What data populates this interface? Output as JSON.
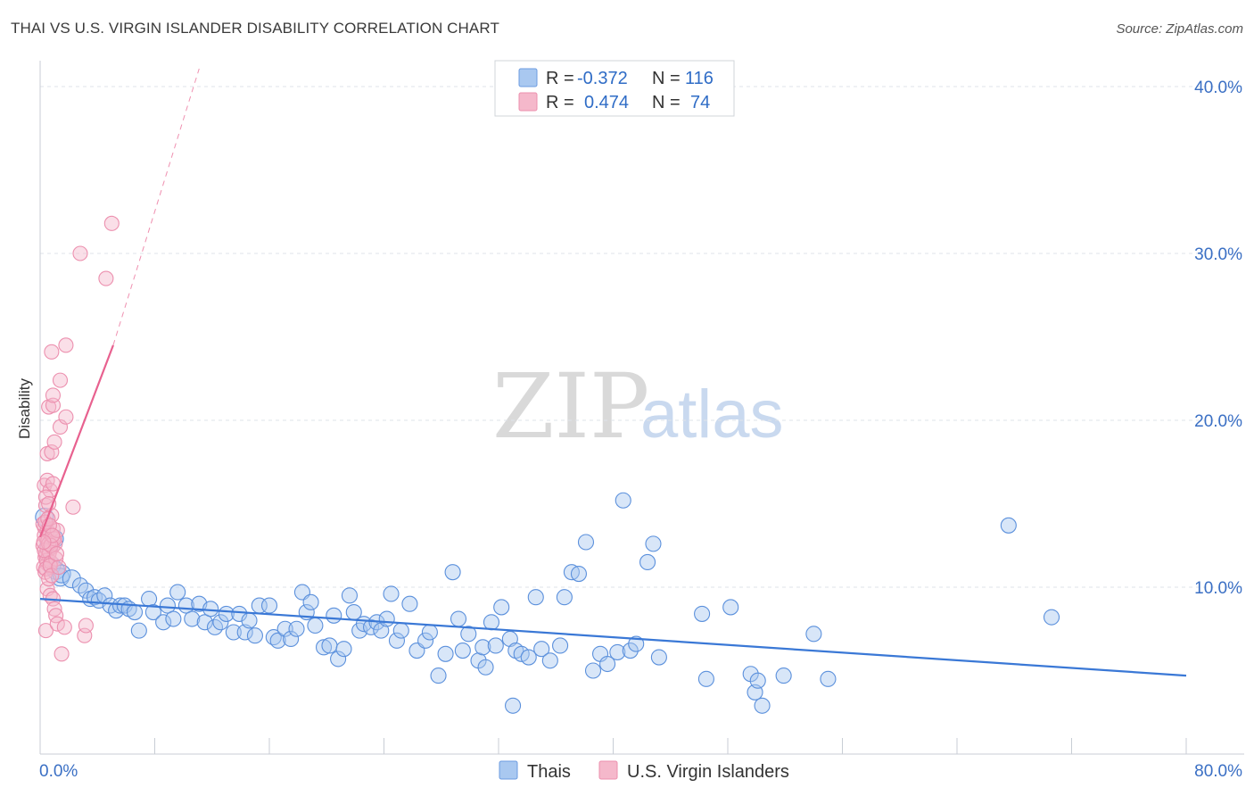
{
  "title": "THAI VS U.S. VIRGIN ISLANDER DISABILITY CORRELATION CHART",
  "source": "Source: ZipAtlas.com",
  "watermark": {
    "zip": "ZIP",
    "atlas": "atlas"
  },
  "colors": {
    "blue": "#3a78d6",
    "blue_fill": "#a9c8f0",
    "pink": "#e8618f",
    "pink_fill": "#f5b8cb",
    "grid": "#dfe3ea",
    "axis": "#3a6fc4"
  },
  "legend": {
    "rows": [
      {
        "r_label": "R =",
        "r_value": "-0.372",
        "n_label": "N =",
        "n_value": "116"
      },
      {
        "r_label": "R =",
        "r_value": "0.474",
        "n_label": "N =",
        "n_value": "74"
      }
    ]
  },
  "bottom_legend": [
    "Thais",
    "U.S. Virgin Islanders"
  ],
  "chart_data": {
    "type": "scatter",
    "title": "THAI VS U.S. VIRGIN ISLANDER DISABILITY CORRELATION CHART",
    "xlabel": "",
    "ylabel": "Disability",
    "xlim": [
      0,
      80
    ],
    "ylim": [
      0,
      40
    ],
    "x_tick_labels": [
      "0.0%",
      "80.0%"
    ],
    "y_ticks": [
      10,
      20,
      30,
      40
    ],
    "y_tick_labels": [
      "10.0%",
      "20.0%",
      "30.0%",
      "40.0%"
    ],
    "series": [
      {
        "name": "Thais",
        "R": -0.372,
        "N": 116,
        "trend": {
          "x": [
            0,
            80
          ],
          "y": [
            9.3,
            4.7
          ]
        },
        "points": [
          [
            0.3,
            14.2
          ],
          [
            0.6,
            12.4
          ],
          [
            0.8,
            11.3
          ],
          [
            1.0,
            12.9
          ],
          [
            1.1,
            11.0
          ],
          [
            1.4,
            10.6
          ],
          [
            1.5,
            10.8
          ],
          [
            2.2,
            10.5
          ],
          [
            2.8,
            10.1
          ],
          [
            3.2,
            9.8
          ],
          [
            3.5,
            9.3
          ],
          [
            3.8,
            9.4
          ],
          [
            4.1,
            9.2
          ],
          [
            4.5,
            9.5
          ],
          [
            4.9,
            8.9
          ],
          [
            5.3,
            8.6
          ],
          [
            5.6,
            8.9
          ],
          [
            5.9,
            8.9
          ],
          [
            6.2,
            8.7
          ],
          [
            6.6,
            8.5
          ],
          [
            6.9,
            7.4
          ],
          [
            7.6,
            9.3
          ],
          [
            7.9,
            8.5
          ],
          [
            8.6,
            7.9
          ],
          [
            8.9,
            8.9
          ],
          [
            9.3,
            8.1
          ],
          [
            9.6,
            9.7
          ],
          [
            10.2,
            8.9
          ],
          [
            10.6,
            8.1
          ],
          [
            11.1,
            9.0
          ],
          [
            11.5,
            7.9
          ],
          [
            11.9,
            8.7
          ],
          [
            12.2,
            7.6
          ],
          [
            12.6,
            7.9
          ],
          [
            13.0,
            8.4
          ],
          [
            13.5,
            7.3
          ],
          [
            13.9,
            8.4
          ],
          [
            14.3,
            7.3
          ],
          [
            14.6,
            8.0
          ],
          [
            15.0,
            7.1
          ],
          [
            15.3,
            8.9
          ],
          [
            16.0,
            8.9
          ],
          [
            16.3,
            7.0
          ],
          [
            16.6,
            6.8
          ],
          [
            17.1,
            7.5
          ],
          [
            17.5,
            6.9
          ],
          [
            17.9,
            7.5
          ],
          [
            18.3,
            9.7
          ],
          [
            18.6,
            8.5
          ],
          [
            18.9,
            9.1
          ],
          [
            19.2,
            7.7
          ],
          [
            19.8,
            6.4
          ],
          [
            20.2,
            6.5
          ],
          [
            20.5,
            8.3
          ],
          [
            20.8,
            5.7
          ],
          [
            21.2,
            6.3
          ],
          [
            21.6,
            9.5
          ],
          [
            21.9,
            8.5
          ],
          [
            22.3,
            7.4
          ],
          [
            22.6,
            7.8
          ],
          [
            23.1,
            7.6
          ],
          [
            23.5,
            7.9
          ],
          [
            23.8,
            7.4
          ],
          [
            24.2,
            8.1
          ],
          [
            24.5,
            9.6
          ],
          [
            24.9,
            6.8
          ],
          [
            25.2,
            7.4
          ],
          [
            25.8,
            9.0
          ],
          [
            26.3,
            6.2
          ],
          [
            26.9,
            6.8
          ],
          [
            27.2,
            7.3
          ],
          [
            27.8,
            4.7
          ],
          [
            28.3,
            6.0
          ],
          [
            28.8,
            10.9
          ],
          [
            29.2,
            8.1
          ],
          [
            29.5,
            6.2
          ],
          [
            29.9,
            7.2
          ],
          [
            30.6,
            5.6
          ],
          [
            30.9,
            6.4
          ],
          [
            31.1,
            5.2
          ],
          [
            31.5,
            7.9
          ],
          [
            31.8,
            6.5
          ],
          [
            32.2,
            8.8
          ],
          [
            32.8,
            6.9
          ],
          [
            33.2,
            6.2
          ],
          [
            33.6,
            6.0
          ],
          [
            34.1,
            5.8
          ],
          [
            34.6,
            9.4
          ],
          [
            35.0,
            6.3
          ],
          [
            35.6,
            5.6
          ],
          [
            36.3,
            6.5
          ],
          [
            36.6,
            9.4
          ],
          [
            37.1,
            10.9
          ],
          [
            37.6,
            10.8
          ],
          [
            38.1,
            12.7
          ],
          [
            38.6,
            5.0
          ],
          [
            39.1,
            6.0
          ],
          [
            39.6,
            5.4
          ],
          [
            40.3,
            6.1
          ],
          [
            40.7,
            15.2
          ],
          [
            41.2,
            6.2
          ],
          [
            41.6,
            6.6
          ],
          [
            42.4,
            11.5
          ],
          [
            42.8,
            12.6
          ],
          [
            43.2,
            5.8
          ],
          [
            46.2,
            8.4
          ],
          [
            46.5,
            4.5
          ],
          [
            48.2,
            8.8
          ],
          [
            49.6,
            4.8
          ],
          [
            49.9,
            3.7
          ],
          [
            50.1,
            4.4
          ],
          [
            50.4,
            2.9
          ],
          [
            51.9,
            4.7
          ],
          [
            54.0,
            7.2
          ],
          [
            55.0,
            4.5
          ],
          [
            67.6,
            13.7
          ],
          [
            70.6,
            8.2
          ],
          [
            33.0,
            2.9
          ]
        ]
      },
      {
        "name": "U.S. Virgin Islanders",
        "R": 0.474,
        "N": 74,
        "trend": {
          "x": [
            0,
            5.1
          ],
          "y": [
            13.0,
            24.5
          ]
        },
        "trend_extended": {
          "x": [
            5.1,
            11.1
          ],
          "y": [
            24.5,
            40.0
          ]
        },
        "points": [
          [
            0.2,
            12.5
          ],
          [
            0.3,
            13.1
          ],
          [
            0.35,
            11.8
          ],
          [
            0.4,
            12.0
          ],
          [
            0.45,
            12.9
          ],
          [
            0.5,
            11.4
          ],
          [
            0.3,
            13.6
          ],
          [
            0.4,
            14.9
          ],
          [
            0.5,
            12.3
          ],
          [
            0.6,
            11.9
          ],
          [
            0.7,
            13.2
          ],
          [
            0.8,
            12.7
          ],
          [
            0.25,
            11.2
          ],
          [
            0.35,
            10.9
          ],
          [
            0.45,
            11.6
          ],
          [
            0.55,
            12.8
          ],
          [
            0.65,
            12.1
          ],
          [
            0.75,
            11.5
          ],
          [
            0.85,
            12.4
          ],
          [
            0.95,
            13.0
          ],
          [
            1.05,
            12.6
          ],
          [
            1.1,
            11.7
          ],
          [
            0.2,
            13.8
          ],
          [
            0.3,
            12.2
          ],
          [
            0.4,
            11.1
          ],
          [
            0.5,
            13.4
          ],
          [
            0.6,
            12.6
          ],
          [
            0.7,
            11.3
          ],
          [
            0.8,
            14.3
          ],
          [
            0.9,
            13.5
          ],
          [
            1.0,
            12.9
          ],
          [
            1.2,
            13.4
          ],
          [
            0.3,
            16.1
          ],
          [
            0.5,
            16.4
          ],
          [
            0.7,
            15.8
          ],
          [
            0.9,
            16.2
          ],
          [
            0.4,
            15.4
          ],
          [
            0.6,
            15.0
          ],
          [
            0.5,
            18.0
          ],
          [
            0.8,
            18.1
          ],
          [
            1.0,
            18.7
          ],
          [
            0.6,
            20.8
          ],
          [
            0.9,
            20.9
          ],
          [
            0.9,
            21.5
          ],
          [
            1.4,
            19.6
          ],
          [
            1.8,
            20.2
          ],
          [
            1.4,
            22.4
          ],
          [
            0.8,
            24.1
          ],
          [
            1.8,
            24.5
          ],
          [
            2.3,
            14.8
          ],
          [
            2.8,
            30.0
          ],
          [
            4.6,
            28.5
          ],
          [
            5.0,
            31.8
          ],
          [
            0.5,
            9.9
          ],
          [
            0.7,
            9.5
          ],
          [
            0.9,
            9.3
          ],
          [
            1.0,
            8.7
          ],
          [
            1.1,
            8.3
          ],
          [
            0.4,
            7.4
          ],
          [
            0.6,
            10.5
          ],
          [
            1.2,
            7.8
          ],
          [
            1.5,
            6.0
          ],
          [
            1.7,
            7.6
          ],
          [
            3.1,
            7.1
          ],
          [
            3.2,
            7.7
          ],
          [
            0.8,
            10.7
          ],
          [
            1.3,
            11.2
          ],
          [
            0.35,
            13.9
          ],
          [
            0.55,
            14.1
          ],
          [
            0.65,
            13.7
          ],
          [
            0.75,
            12.5
          ],
          [
            0.85,
            13.1
          ],
          [
            1.15,
            12.0
          ],
          [
            0.25,
            12.7
          ]
        ]
      }
    ]
  }
}
